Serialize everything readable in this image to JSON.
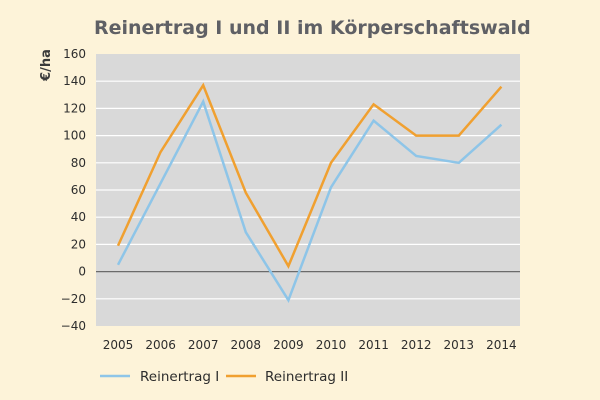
{
  "chart_data": {
    "type": "line",
    "title": "Reinertrag I und II im Körperschaftswald",
    "ylabel": "€/ha",
    "xlabel": "",
    "x": [
      "2005",
      "2006",
      "2007",
      "2008",
      "2009",
      "2010",
      "2011",
      "2012",
      "2013",
      "2014"
    ],
    "ylim": [
      -40,
      160
    ],
    "yticks": [
      -40,
      -20,
      0,
      20,
      40,
      60,
      80,
      100,
      120,
      140,
      160
    ],
    "ytick_labels": [
      "−40",
      "−20",
      "0",
      "20",
      "40",
      "60",
      "80",
      "100",
      "120",
      "140",
      "160"
    ],
    "grid": true,
    "legend_position": "bottom",
    "series": [
      {
        "name": "Reinertrag I",
        "color": "#8ec5e8",
        "values": [
          5,
          65,
          125,
          29,
          -21,
          62,
          111,
          85,
          80,
          108
        ]
      },
      {
        "name": "Reinertrag II",
        "color": "#f0a030",
        "values": [
          19,
          88,
          137,
          58,
          4,
          80,
          123,
          100,
          100,
          136
        ]
      }
    ],
    "colors": {
      "background": "#fdf3d9",
      "plot_area": "#d9d9d9",
      "gridline": "#ffffff",
      "zero_line": "#6b6b6b"
    }
  }
}
